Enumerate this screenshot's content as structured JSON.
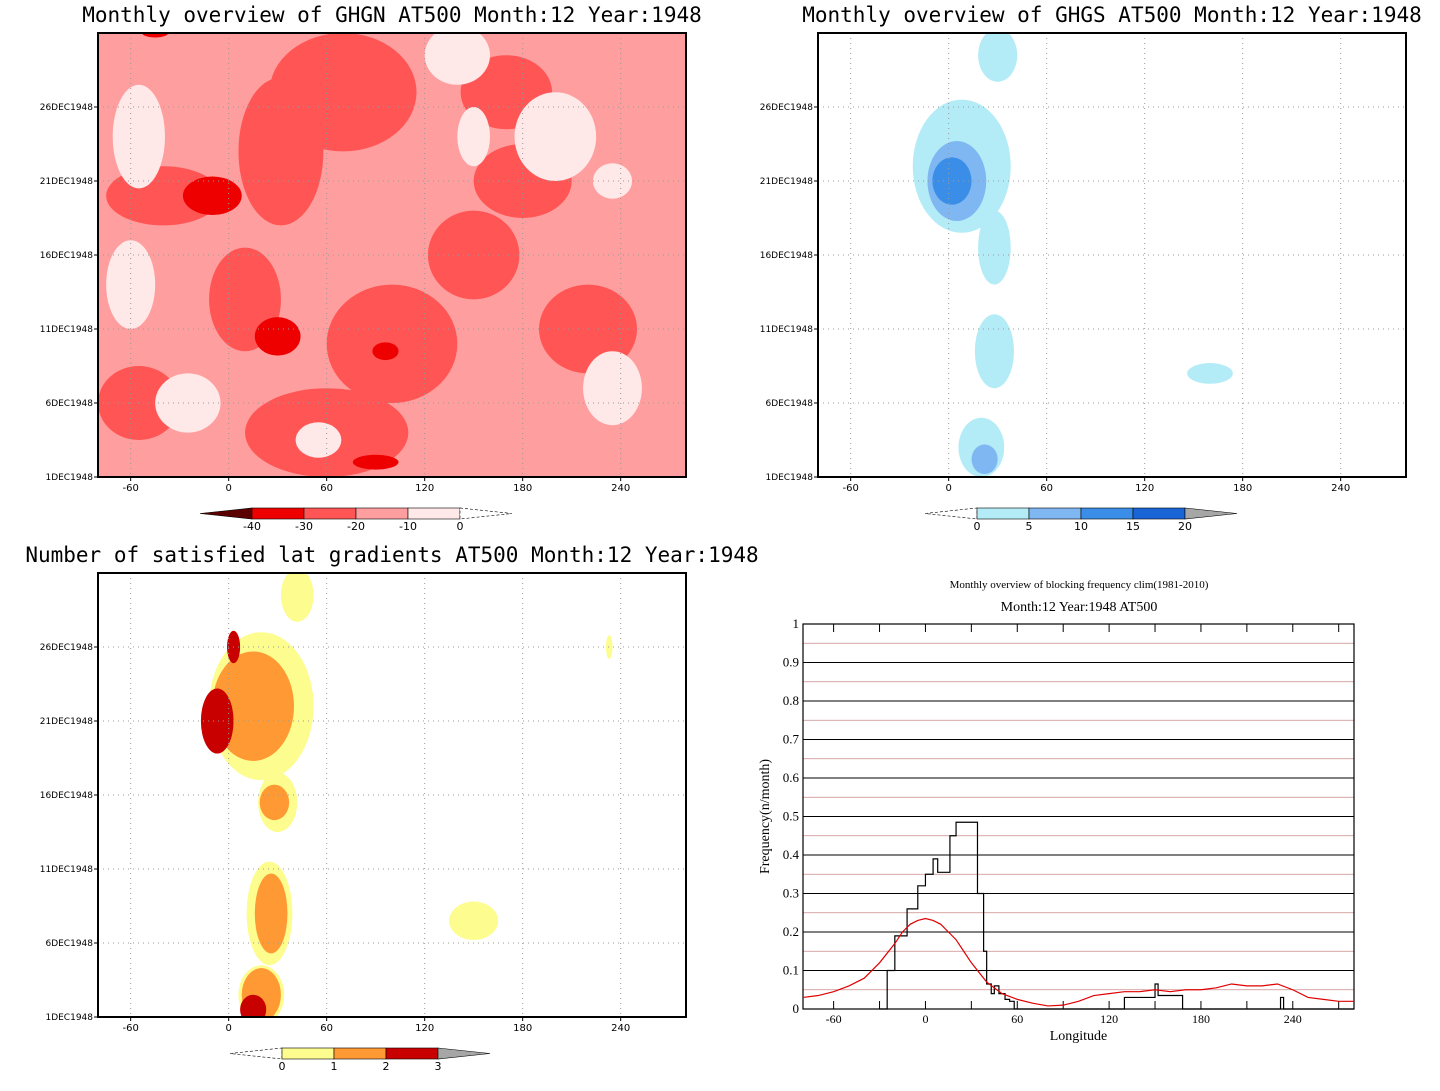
{
  "chart_data": [
    {
      "type": "heatmap",
      "title": "Monthly overview of GHGN AT500 Month:12 Year:1948",
      "x_ticks": [
        "-60",
        "0",
        "60",
        "120",
        "180",
        "240"
      ],
      "y_ticks": [
        "1DEC1948",
        "6DEC1948",
        "11DEC1948",
        "16DEC1948",
        "21DEC1948",
        "26DEC1948"
      ],
      "xlim": [
        -80,
        280
      ],
      "colorbar": {
        "labels": [
          "-40",
          "-30",
          "-20",
          "-10",
          "0"
        ],
        "colors": [
          "#5a0000",
          "#ee0000",
          "#ff5555",
          "#ff9e9e",
          "#ffe8e8"
        ]
      },
      "field": {
        "base_color": "#ff9e9e",
        "regions": [
          {
            "level": "-20",
            "color": "#ff5555",
            "lon": 32,
            "day": 22.0,
            "rlon": 26,
            "rday": 5.0
          },
          {
            "level": "-20",
            "color": "#ff5555",
            "lon": 70,
            "day": 26.0,
            "rlon": 45,
            "rday": 4.0
          },
          {
            "level": "-20",
            "color": "#ff5555",
            "lon": 10,
            "day": 12.0,
            "rlon": 22,
            "rday": 3.5
          },
          {
            "level": "-20",
            "color": "#ff5555",
            "lon": 100,
            "day": 9.0,
            "rlon": 40,
            "rday": 4.0
          },
          {
            "level": "-20",
            "color": "#ff5555",
            "lon": 150,
            "day": 15.0,
            "rlon": 28,
            "rday": 3.0
          },
          {
            "level": "-20",
            "color": "#ff5555",
            "lon": 180,
            "day": 20.0,
            "rlon": 30,
            "rday": 2.5
          },
          {
            "level": "-20",
            "color": "#ff5555",
            "lon": -40,
            "day": 19.0,
            "rlon": 35,
            "rday": 2.0
          },
          {
            "level": "-20",
            "color": "#ff5555",
            "lon": 170,
            "day": 26.0,
            "rlon": 28,
            "rday": 2.5
          },
          {
            "level": "-20",
            "color": "#ff5555",
            "lon": 60,
            "day": 3.0,
            "rlon": 50,
            "rday": 3.0
          },
          {
            "level": "-20",
            "color": "#ff5555",
            "lon": 220,
            "day": 10.0,
            "rlon": 30,
            "rday": 3.0
          },
          {
            "level": "-20",
            "color": "#ff5555",
            "lon": -55,
            "day": 5.0,
            "rlon": 25,
            "rday": 2.5
          },
          {
            "level": "-30",
            "color": "#ee0000",
            "lon": -10,
            "day": 19.0,
            "rlon": 18,
            "rday": 1.3
          },
          {
            "level": "-30",
            "color": "#ee0000",
            "lon": 30,
            "day": 9.5,
            "rlon": 14,
            "rday": 1.3
          },
          {
            "level": "-30",
            "color": "#ee0000",
            "lon": 96,
            "day": 8.5,
            "rlon": 8,
            "rday": 0.6
          },
          {
            "level": "-30",
            "color": "#ee0000",
            "lon": -45,
            "day": 30.0,
            "rlon": 8,
            "rday": 0.3
          },
          {
            "level": "-30",
            "color": "#ee0000",
            "lon": 90,
            "day": 1.0,
            "rlon": 14,
            "rday": 0.5
          },
          {
            "level": "-10",
            "color": "#ffe8e8",
            "lon": -55,
            "day": 23.0,
            "rlon": 16,
            "rday": 3.5
          },
          {
            "level": "-10",
            "color": "#ffe8e8",
            "lon": -60,
            "day": 13.0,
            "rlon": 15,
            "rday": 3.0
          },
          {
            "level": "-10",
            "color": "#ffe8e8",
            "lon": 140,
            "day": 28.5,
            "rlon": 20,
            "rday": 2.0
          },
          {
            "level": "-10",
            "color": "#ffe8e8",
            "lon": 200,
            "day": 23.0,
            "rlon": 25,
            "rday": 3.0
          },
          {
            "level": "-10",
            "color": "#ffe8e8",
            "lon": 235,
            "day": 6.0,
            "rlon": 18,
            "rday": 2.5
          },
          {
            "level": "-10",
            "color": "#ffe8e8",
            "lon": -25,
            "day": 5.0,
            "rlon": 20,
            "rday": 2.0
          },
          {
            "level": "-10",
            "color": "#ffe8e8",
            "lon": 55,
            "day": 2.5,
            "rlon": 14,
            "rday": 1.2
          },
          {
            "level": "-10",
            "color": "#ffe8e8",
            "lon": 150,
            "day": 23.0,
            "rlon": 10,
            "rday": 2.0
          },
          {
            "level": "-10",
            "color": "#ffe8e8",
            "lon": 235,
            "day": 20.0,
            "rlon": 12,
            "rday": 1.2
          }
        ]
      }
    },
    {
      "type": "heatmap",
      "title": "Monthly overview of GHGS AT500 Month:12 Year:1948",
      "x_ticks": [
        "-60",
        "0",
        "60",
        "120",
        "180",
        "240"
      ],
      "y_ticks": [
        "1DEC1948",
        "6DEC1948",
        "11DEC1948",
        "16DEC1948",
        "21DEC1948",
        "26DEC1948"
      ],
      "xlim": [
        -80,
        280
      ],
      "colorbar": {
        "labels": [
          "0",
          "5",
          "10",
          "15",
          "20"
        ],
        "colors": [
          "#b3ecf7",
          "#7fb7f2",
          "#3a8ee8",
          "#1a65d6"
        ]
      },
      "field": {
        "base_color": "#ffffff",
        "regions": [
          {
            "level": "0",
            "color": "#b3ecf7",
            "lon": 8,
            "day": 21.0,
            "rlon": 30,
            "rday": 4.5
          },
          {
            "level": "0",
            "color": "#b3ecf7",
            "lon": 30,
            "day": 28.5,
            "rlon": 12,
            "rday": 1.8
          },
          {
            "level": "0",
            "color": "#b3ecf7",
            "lon": 28,
            "day": 15.5,
            "rlon": 10,
            "rday": 2.5
          },
          {
            "level": "0",
            "color": "#b3ecf7",
            "lon": 28,
            "day": 8.5,
            "rlon": 12,
            "rday": 2.5
          },
          {
            "level": "0",
            "color": "#b3ecf7",
            "lon": 20,
            "day": 2.0,
            "rlon": 14,
            "rday": 2.0
          },
          {
            "level": "0",
            "color": "#b3ecf7",
            "lon": 160,
            "day": 7.0,
            "rlon": 14,
            "rday": 0.7
          },
          {
            "level": "5",
            "color": "#7fb7f2",
            "lon": 5,
            "day": 20.0,
            "rlon": 18,
            "rday": 2.7
          },
          {
            "level": "5",
            "color": "#7fb7f2",
            "lon": 22,
            "day": 1.2,
            "rlon": 8,
            "rday": 1.0
          },
          {
            "level": "10",
            "color": "#3a8ee8",
            "lon": 2,
            "day": 20.0,
            "rlon": 12,
            "rday": 1.6
          }
        ]
      }
    },
    {
      "type": "heatmap",
      "title": "Number of satisfied lat gradients AT500 Month:12 Year:1948",
      "x_ticks": [
        "-60",
        "0",
        "60",
        "120",
        "180",
        "240"
      ],
      "y_ticks": [
        "1DEC1948",
        "6DEC1948",
        "11DEC1948",
        "16DEC1948",
        "21DEC1948",
        "26DEC1948"
      ],
      "xlim": [
        -80,
        280
      ],
      "colorbar": {
        "labels": [
          "0",
          "1",
          "2",
          "3"
        ],
        "colors": [
          "#fcfc8f",
          "#ff9933",
          "#c80000"
        ]
      },
      "field": {
        "base_color": "#ffffff",
        "regions": [
          {
            "level": "1",
            "color": "#fcfc8f",
            "lon": 20,
            "day": 21.0,
            "rlon": 32,
            "rday": 5.0
          },
          {
            "level": "1",
            "color": "#fcfc8f",
            "lon": 42,
            "day": 28.5,
            "rlon": 10,
            "rday": 1.8
          },
          {
            "level": "1",
            "color": "#fcfc8f",
            "lon": 30,
            "day": 14.5,
            "rlon": 12,
            "rday": 2.0
          },
          {
            "level": "1",
            "color": "#fcfc8f",
            "lon": 25,
            "day": 7.0,
            "rlon": 14,
            "rday": 3.5
          },
          {
            "level": "1",
            "color": "#fcfc8f",
            "lon": 20,
            "day": 1.5,
            "rlon": 14,
            "rday": 2.0
          },
          {
            "level": "1",
            "color": "#fcfc8f",
            "lon": 150,
            "day": 6.5,
            "rlon": 15,
            "rday": 1.3
          },
          {
            "level": "1",
            "color": "#fcfc8f",
            "lon": 233,
            "day": 25.0,
            "rlon": 2,
            "rday": 0.8
          },
          {
            "level": "2",
            "color": "#ff9933",
            "lon": 15,
            "day": 21.0,
            "rlon": 25,
            "rday": 3.7
          },
          {
            "level": "2",
            "color": "#ff9933",
            "lon": 28,
            "day": 14.5,
            "rlon": 9,
            "rday": 1.2
          },
          {
            "level": "2",
            "color": "#ff9933",
            "lon": 26,
            "day": 7.0,
            "rlon": 10,
            "rday": 2.7
          },
          {
            "level": "2",
            "color": "#ff9933",
            "lon": 20,
            "day": 1.5,
            "rlon": 12,
            "rday": 1.8
          },
          {
            "level": "3",
            "color": "#c80000",
            "lon": -7,
            "day": 20.0,
            "rlon": 10,
            "rday": 2.2
          },
          {
            "level": "3",
            "color": "#c80000",
            "lon": 3,
            "day": 25.0,
            "rlon": 4,
            "rday": 1.1
          },
          {
            "level": "3",
            "color": "#c80000",
            "lon": 15,
            "day": 0.5,
            "rlon": 8,
            "rday": 1.0
          }
        ]
      }
    },
    {
      "type": "line",
      "title": "Monthly overview of blocking frequency clim(1981-2010)",
      "subtitle": "Month:12 Year:1948  AT500",
      "xlabel": "Longitude",
      "ylabel": "Frequency(n/month)",
      "xlim": [
        -80,
        280
      ],
      "ylim": [
        0,
        1
      ],
      "x_ticks": [
        "-60",
        "0",
        "60",
        "120",
        "180",
        "240"
      ],
      "y_ticks": [
        "0",
        "0.1",
        "0.2",
        "0.3",
        "0.4",
        "0.5",
        "0.6",
        "0.7",
        "0.8",
        "0.9",
        "1"
      ],
      "series": [
        {
          "color": "#000000",
          "step": true,
          "x": [
            -30,
            -25,
            -20,
            -15,
            -12,
            -10,
            -5,
            0,
            5,
            8,
            12,
            16,
            20,
            25,
            30,
            34,
            38,
            40,
            43,
            45,
            48,
            52,
            55,
            58,
            60,
            62,
            125,
            130,
            140,
            148,
            150,
            152,
            165,
            168,
            170,
            230,
            232,
            234,
            280
          ],
          "y": [
            0,
            0.1,
            0.19,
            0.19,
            0.26,
            0.26,
            0.32,
            0.35,
            0.39,
            0.355,
            0.355,
            0.45,
            0.485,
            0.485,
            0.485,
            0.3,
            0.15,
            0.065,
            0.04,
            0.06,
            0.04,
            0.025,
            0.02,
            0.0,
            0.0,
            0.0,
            0.0,
            0.03,
            0.03,
            0.03,
            0.065,
            0.035,
            0.035,
            0.0,
            0.0,
            0.0,
            0.03,
            0.0,
            0.0
          ]
        },
        {
          "color": "#e00000",
          "step": false,
          "x": [
            -80,
            -70,
            -60,
            -50,
            -40,
            -30,
            -20,
            -15,
            -10,
            -5,
            0,
            5,
            10,
            15,
            20,
            25,
            30,
            40,
            50,
            60,
            70,
            80,
            90,
            100,
            110,
            120,
            130,
            140,
            150,
            160,
            170,
            180,
            190,
            200,
            210,
            220,
            230,
            240,
            250,
            260,
            270,
            280
          ],
          "y": [
            0.03,
            0.035,
            0.045,
            0.06,
            0.08,
            0.12,
            0.17,
            0.2,
            0.22,
            0.23,
            0.235,
            0.23,
            0.22,
            0.2,
            0.18,
            0.15,
            0.12,
            0.07,
            0.04,
            0.025,
            0.015,
            0.008,
            0.01,
            0.02,
            0.035,
            0.04,
            0.045,
            0.045,
            0.05,
            0.045,
            0.05,
            0.05,
            0.055,
            0.065,
            0.06,
            0.06,
            0.065,
            0.05,
            0.03,
            0.025,
            0.02,
            0.02
          ]
        }
      ]
    }
  ]
}
